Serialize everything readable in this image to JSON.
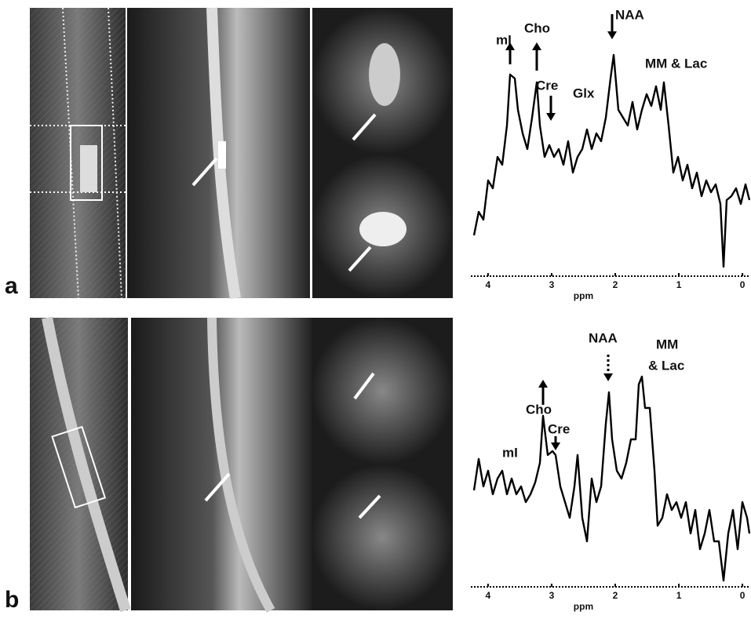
{
  "panels": [
    {
      "label": "a",
      "spectrum": {
        "xlabel": "ppm",
        "xlim": [
          4.27,
          -0.11
        ],
        "xticks": [
          4,
          3,
          2,
          1,
          0
        ],
        "annotations": [
          "mI",
          "Cho",
          "Cre",
          "Glx",
          "NAA",
          "MM & Lac"
        ]
      }
    },
    {
      "label": "b",
      "spectrum": {
        "xlabel": "ppm",
        "xlim": [
          4.27,
          -0.11
        ],
        "xticks": [
          4,
          3,
          2,
          1,
          0
        ],
        "annotations": [
          "mI",
          "Cho",
          "Cre",
          "NAA",
          "MM",
          "& Lac"
        ]
      }
    }
  ]
}
